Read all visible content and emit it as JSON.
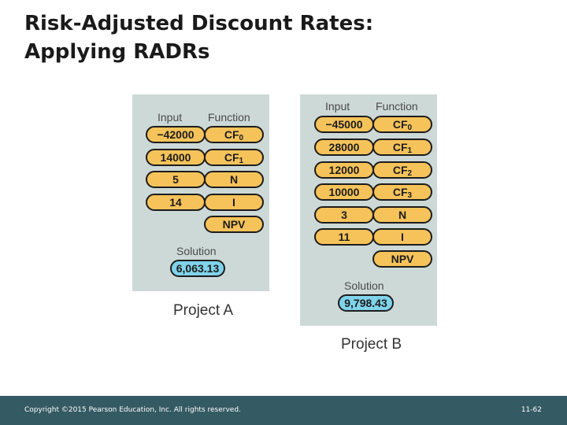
{
  "slide": {
    "title_line1": "Risk-Adjusted Discount Rates:",
    "title_line2": "Applying RADRs"
  },
  "project_a": {
    "input_header": "Input",
    "function_header": "Function",
    "inputs": [
      "−42000",
      "14000",
      "5",
      "14"
    ],
    "functions": [
      {
        "base": "CF",
        "sub": "0"
      },
      {
        "base": "CF",
        "sub": "1"
      },
      {
        "base": "N",
        "sub": ""
      },
      {
        "base": "I",
        "sub": ""
      },
      {
        "base": "NPV",
        "sub": ""
      }
    ],
    "solution_label": "Solution",
    "solution_value": "6,063.13",
    "caption": "Project A"
  },
  "project_b": {
    "input_header": "Input",
    "function_header": "Function",
    "inputs": [
      "−45000",
      "28000",
      "12000",
      "10000",
      "3",
      "11"
    ],
    "functions": [
      {
        "base": "CF",
        "sub": "0"
      },
      {
        "base": "CF",
        "sub": "1"
      },
      {
        "base": "CF",
        "sub": "2"
      },
      {
        "base": "CF",
        "sub": "3"
      },
      {
        "base": "N",
        "sub": ""
      },
      {
        "base": "I",
        "sub": ""
      },
      {
        "base": "NPV",
        "sub": ""
      }
    ],
    "solution_label": "Solution",
    "solution_value": "9,798.43",
    "caption": "Project B"
  },
  "footer": {
    "copyright": "Copyright ©2015 Pearson Education, Inc. All rights reserved.",
    "page_number": "11-62"
  },
  "colors": {
    "panel_bg": "#cdd9d7",
    "key_fill": "#f6c35a",
    "solution_fill": "#7fd3ea",
    "footer_bg": "#345a63"
  }
}
